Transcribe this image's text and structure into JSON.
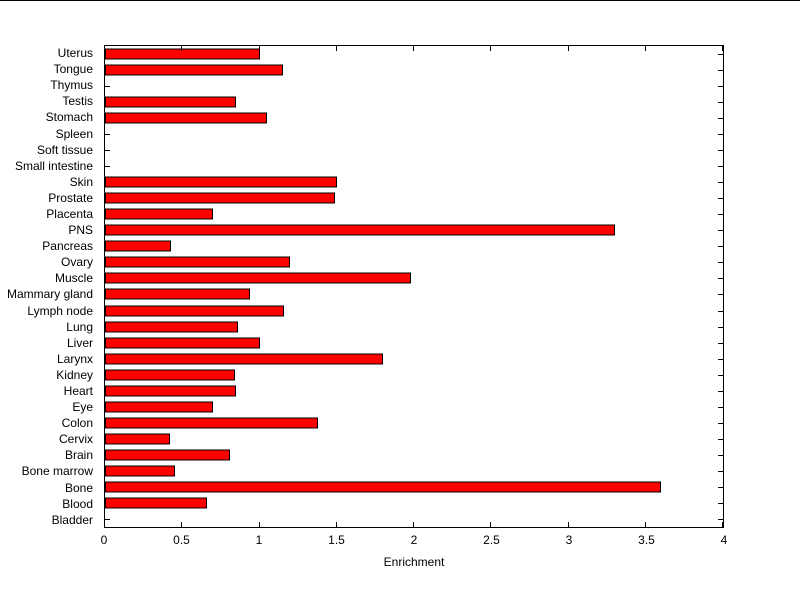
{
  "chart_data": {
    "type": "bar",
    "orientation": "horizontal",
    "order": "top_to_bottom",
    "title": "",
    "xlabel": "Enrichment",
    "ylabel": "",
    "xlim": [
      0,
      4
    ],
    "xticks": [
      0,
      0.5,
      1,
      1.5,
      2,
      2.5,
      3,
      3.5,
      4
    ],
    "xtick_labels": [
      "0",
      "0.5",
      "1",
      "1.5",
      "2",
      "2.5",
      "3",
      "3.5",
      "4"
    ],
    "grid": false,
    "legend": "none",
    "bar_color": "#ff0000",
    "bar_edge_color": "#000000",
    "categories": [
      "Uterus",
      "Tongue",
      "Thymus",
      "Testis",
      "Stomach",
      "Spleen",
      "Soft tissue",
      "Small intestine",
      "Skin",
      "Prostate",
      "Placenta",
      "PNS",
      "Pancreas",
      "Ovary",
      "Muscle",
      "Mammary gland",
      "Lymph node",
      "Lung",
      "Liver",
      "Larynx",
      "Kidney",
      "Heart",
      "Eye",
      "Colon",
      "Cervix",
      "Brain",
      "Bone marrow",
      "Bone",
      "Blood",
      "Bladder"
    ],
    "values": [
      1.0,
      1.15,
      0,
      0.85,
      1.05,
      0,
      0,
      0,
      1.5,
      1.49,
      0.7,
      3.3,
      0.43,
      1.2,
      1.98,
      0.94,
      1.16,
      0.86,
      1.0,
      1.8,
      0.84,
      0.85,
      0.7,
      1.38,
      0.42,
      0.81,
      0.45,
      3.6,
      0.66,
      0
    ]
  }
}
